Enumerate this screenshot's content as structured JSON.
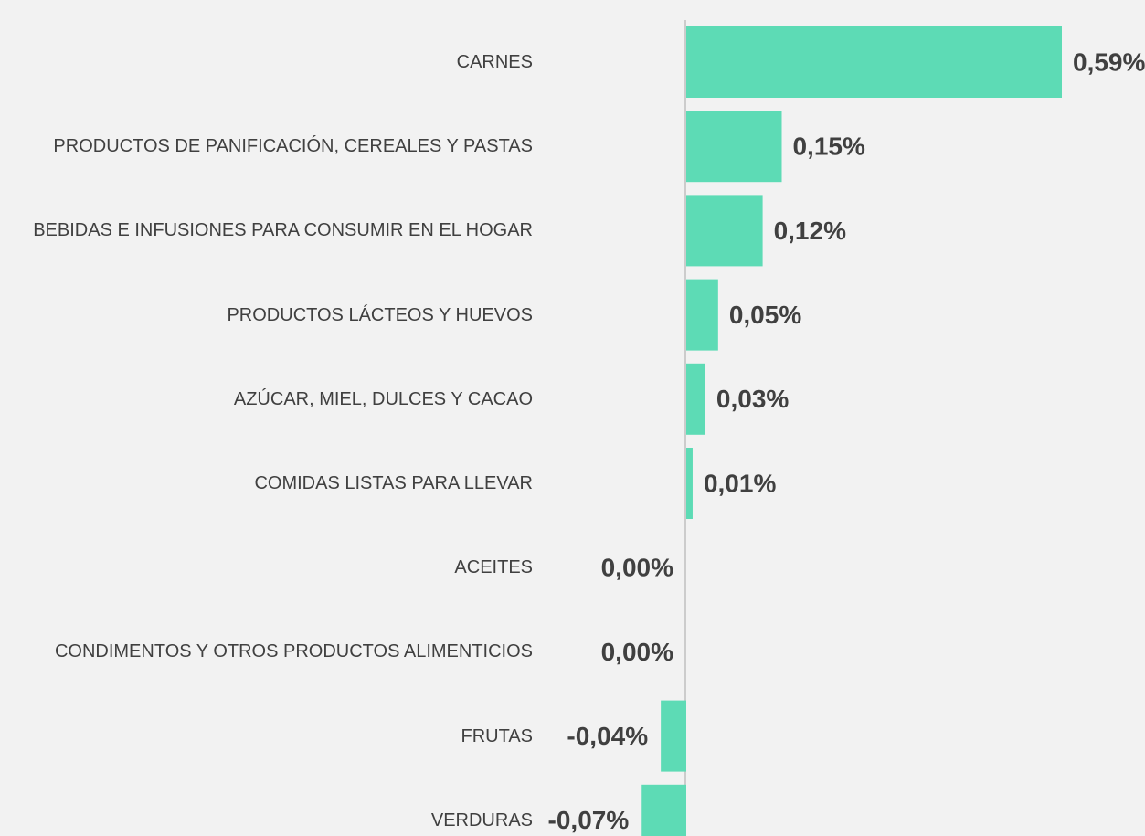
{
  "chart_data": {
    "type": "barh",
    "categories": [
      "CARNES",
      "PRODUCTOS DE PANIFICACIÓN, CEREALES Y PASTAS",
      "BEBIDAS E INFUSIONES PARA CONSUMIR EN EL HOGAR",
      "PRODUCTOS LÁCTEOS Y HUEVOS",
      "AZÚCAR, MIEL, DULCES Y CACAO",
      "COMIDAS LISTAS PARA LLEVAR",
      "ACEITES",
      "CONDIMENTOS Y OTROS PRODUCTOS ALIMENTICIOS",
      "FRUTAS",
      "VERDURAS"
    ],
    "values": [
      0.59,
      0.15,
      0.12,
      0.05,
      0.03,
      0.01,
      0.0,
      0.0,
      -0.04,
      -0.07
    ],
    "value_labels": [
      "0,59%",
      "0,15%",
      "0,12%",
      "0,05%",
      "0,03%",
      "0,01%",
      "0,00%",
      "0,00%",
      "-0,04%",
      "-0,07%"
    ],
    "color": "#5ddbb5"
  }
}
